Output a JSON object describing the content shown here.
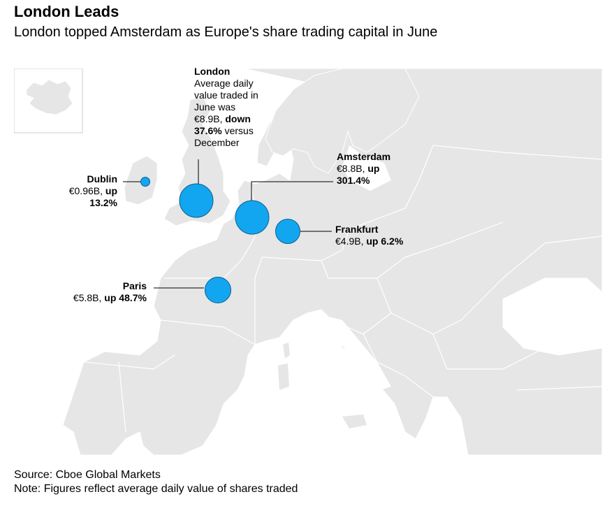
{
  "title": "London Leads",
  "subtitle": "London topped Amsterdam as Europe's share trading capital in June",
  "colors": {
    "land": "#e6e6e6",
    "border": "#ffffff",
    "bubble": "#13a6f0",
    "bubble_stroke": "#0b5f8c"
  },
  "cities": [
    {
      "name": "London",
      "value_eur_b": 8.9,
      "change_pct": -37.6,
      "lines": [
        [
          "London",
          "bold"
        ],
        [
          "Average daily",
          ""
        ],
        [
          "value traded in",
          ""
        ],
        [
          "June was",
          ""
        ],
        [
          "€8.9B, ",
          "",
          "down",
          "bold"
        ],
        [
          "37.6%",
          "bold",
          " versus",
          ""
        ],
        [
          "December",
          ""
        ]
      ]
    },
    {
      "name": "Amsterdam",
      "value_eur_b": 8.8,
      "change_pct": 301.4,
      "l1": "Amsterdam",
      "l2a": "€8.8B, ",
      "l2b": "up",
      "l3": "301.4%"
    },
    {
      "name": "Frankfurt",
      "value_eur_b": 4.9,
      "change_pct": 6.2,
      "l1": "Frankfurt",
      "l2a": "€4.9B, ",
      "l2b": "up 6.2%"
    },
    {
      "name": "Dublin",
      "value_eur_b": 0.96,
      "change_pct": 13.2,
      "l1": "Dublin",
      "l2a": "€0.96B, ",
      "l2b": "up",
      "l3": "13.2%"
    },
    {
      "name": "Paris",
      "value_eur_b": 5.8,
      "change_pct": 48.7,
      "l1": "Paris",
      "l2a": "€5.8B, ",
      "l2b": "up 48.7%"
    }
  ],
  "london_label": {
    "name": "London",
    "t1": "Average daily",
    "t2": "value traded in",
    "t3": "June was",
    "t4a": "€8.9B, ",
    "t4b": "down",
    "t5a": "37.6%",
    "t5b": " versus",
    "t6": "December"
  },
  "source": "Source: Cboe Global Markets",
  "note": "Note: Figures reflect average daily value of shares traded"
}
